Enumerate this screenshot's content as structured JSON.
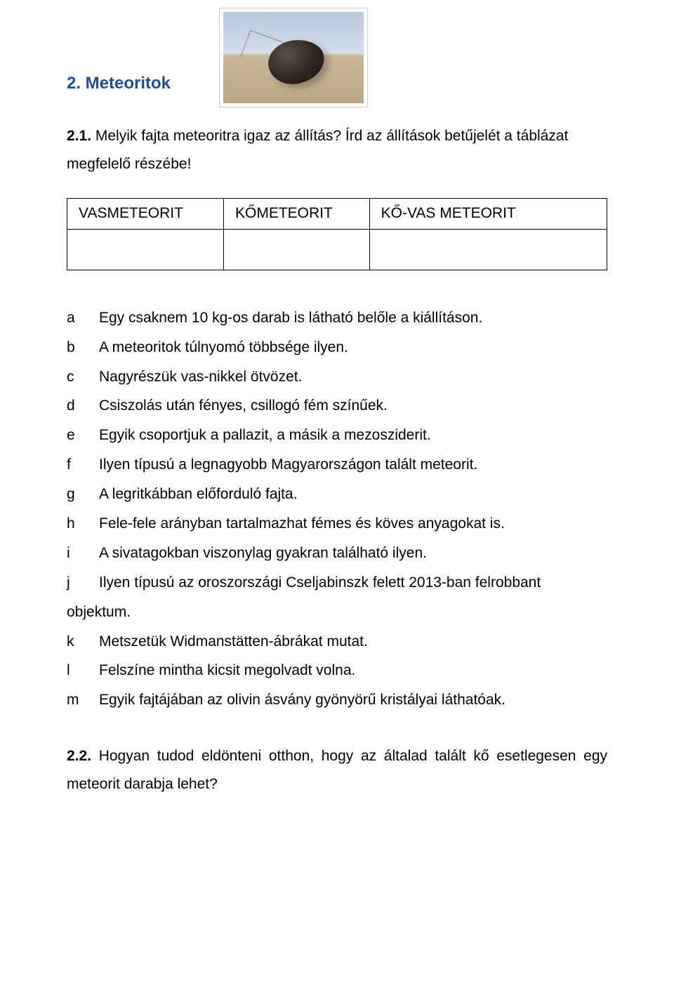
{
  "heading": "2. Meteoritok",
  "intro_bold": "2.1.",
  "intro_rest": " Melyik fajta meteoritra igaz az állítás? Írd az állítások betűjelét a táblázat megfelelő részébe!",
  "table": {
    "headers": [
      "VASMETEORIT",
      "KŐMETEORIT",
      "KŐ-VAS METEORIT"
    ]
  },
  "statements": [
    {
      "letter": "a",
      "text": "Egy csaknem 10 kg-os darab is látható belőle a kiállításon."
    },
    {
      "letter": "b",
      "text": "A meteoritok túlnyomó többsége ilyen."
    },
    {
      "letter": "c",
      "text": "Nagyrészük vas-nikkel ötvözet."
    },
    {
      "letter": "d",
      "text": "Csiszolás után fényes, csillogó fém színűek."
    },
    {
      "letter": "e",
      "text": "Egyik csoportjuk a pallazit, a másik a mezosziderit."
    },
    {
      "letter": "f",
      "text": "Ilyen típusú a legnagyobb Magyarországon talált meteorit."
    },
    {
      "letter": "g",
      "text": "A legritkábban előforduló fajta."
    },
    {
      "letter": "h",
      "text": "Fele-fele arányban tartalmazhat fémes és köves anyagokat is."
    },
    {
      "letter": "i",
      "text": "A sivatagokban viszonylag gyakran található ilyen."
    },
    {
      "letter": "j",
      "text": "Ilyen típusú az oroszországi Cseljabinszk felett 2013-ban felrobbant",
      "justify": true
    }
  ],
  "objektum": "objektum.",
  "statements2": [
    {
      "letter": "k",
      "text": "Metszetük Widmanstätten-ábrákat mutat."
    },
    {
      "letter": "l",
      "text": "Felszíne mintha kicsit megolvadt volna."
    },
    {
      "letter": "m",
      "text": "Egyik fajtájában az olivin ásvány gyönyörű kristályai láthatóak."
    }
  ],
  "q22_bold": "2.2.",
  "q22_rest": " Hogyan tudod eldönteni otthon, hogy az általad talált kő esetlegesen egy meteorit darabja lehet?"
}
